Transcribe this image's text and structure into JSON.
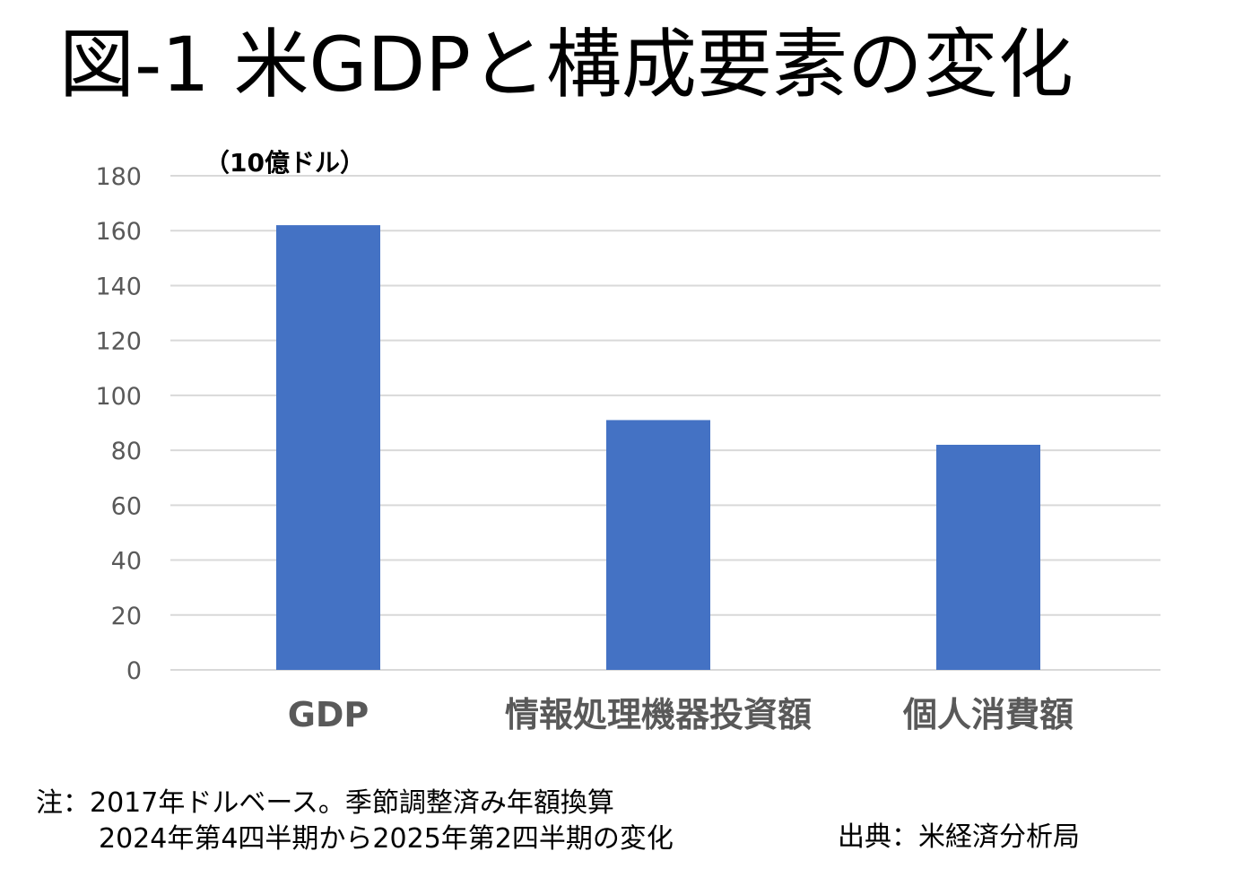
{
  "title": "図-1 米GDPと構成要素の変化",
  "unit_label": "（10億ドル）",
  "colors": {
    "bar": "#4472C4",
    "grid": "#D9D9D9",
    "axis_text": "#595959"
  },
  "chart_data": {
    "type": "bar",
    "categories": [
      "GDP",
      "情報処理機器投資額",
      "個人消費額"
    ],
    "values": [
      162,
      91,
      82
    ],
    "ylim": [
      0,
      180
    ],
    "yticks": [
      0,
      20,
      40,
      60,
      80,
      100,
      120,
      140,
      160,
      180
    ],
    "ylabel": "（10億ドル）",
    "xlabel": "",
    "title": "図-1 米GDPと構成要素の変化",
    "grid": true
  },
  "note": {
    "line1": "注：2017年ドルベース。季節調整済み年額換算",
    "line2": "2024年第4四半期から2025年第2四半期の変化"
  },
  "source": "出典：米経済分析局"
}
